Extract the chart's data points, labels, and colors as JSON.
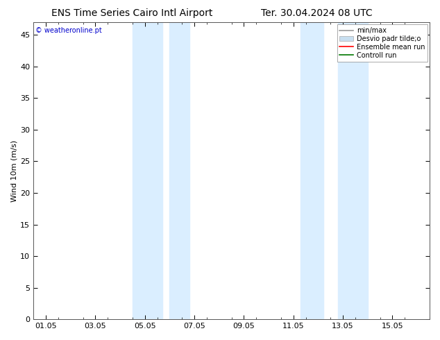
{
  "title_left": "ENS Time Series Cairo Intl Airport",
  "title_right": "Ter. 30.04.2024 08 UTC",
  "ylabel": "Wind 10m (m/s)",
  "watermark": "© weatheronline.pt",
  "watermark_color": "#0000cc",
  "ylim": [
    0,
    47
  ],
  "yticks": [
    0,
    5,
    10,
    15,
    20,
    25,
    30,
    35,
    40,
    45
  ],
  "xtick_labels": [
    "01.05",
    "03.05",
    "05.05",
    "07.05",
    "09.05",
    "11.05",
    "13.05",
    "15.05"
  ],
  "xtick_vals": [
    0,
    2,
    4,
    6,
    8,
    10,
    12,
    14
  ],
  "xlim": [
    -0.5,
    15.5
  ],
  "shaded_bands": [
    {
      "xmin": 3.5,
      "xmax": 4.7
    },
    {
      "xmin": 5.0,
      "xmax": 5.8
    },
    {
      "xmin": 10.3,
      "xmax": 11.2
    },
    {
      "xmin": 11.8,
      "xmax": 13.0
    }
  ],
  "shaded_color": "#daeeff",
  "bg_color": "#ffffff",
  "legend_entries": [
    {
      "label": "min/max",
      "color": "#999999",
      "lw": 1.2,
      "type": "line"
    },
    {
      "label": "Desvio padr tilde;o",
      "color": "#c8dff0",
      "lw": 6,
      "type": "patch"
    },
    {
      "label": "Ensemble mean run",
      "color": "#ff0000",
      "lw": 1.2,
      "type": "line"
    },
    {
      "label": "Controll run",
      "color": "#007700",
      "lw": 1.2,
      "type": "line"
    }
  ],
  "title_fontsize": 10,
  "tick_fontsize": 8,
  "ylabel_fontsize": 8,
  "legend_fontsize": 7
}
